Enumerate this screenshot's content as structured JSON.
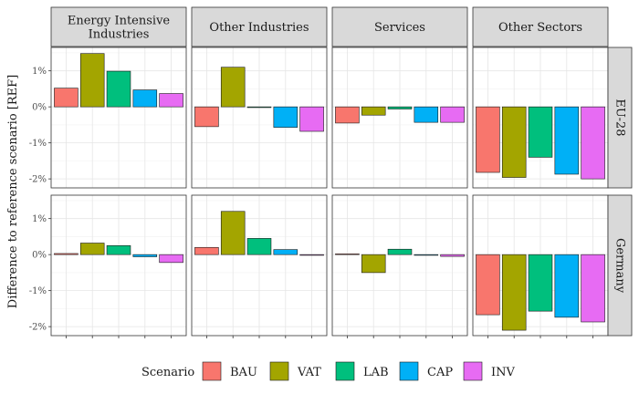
{
  "chart_data": {
    "type": "bar",
    "facet_columns": [
      [
        "Energy Intensive",
        "Industries"
      ],
      [
        "Other Industries"
      ],
      [
        "Services"
      ],
      [
        "Other Sectors"
      ]
    ],
    "facet_rows": [
      "EU-28",
      "Germany"
    ],
    "ylabel": "Difference to reference scenario [REF]",
    "ylim": [
      -2.25,
      1.65
    ],
    "yticks": [
      1,
      0,
      -1,
      -2
    ],
    "ytick_labels": [
      "1%",
      "0%",
      "-1%",
      "-2%"
    ],
    "grid": true,
    "legend": {
      "title": "Scenario",
      "position": "bottom"
    },
    "series": [
      {
        "name": "BAU",
        "color": "#F8766D"
      },
      {
        "name": "VAT",
        "color": "#A3A500"
      },
      {
        "name": "LAB",
        "color": "#00BF7D"
      },
      {
        "name": "CAP",
        "color": "#00B0F6"
      },
      {
        "name": "INV",
        "color": "#E76BF3"
      }
    ],
    "panels": [
      {
        "row": 0,
        "col": 0,
        "values": [
          0.52,
          1.48,
          0.99,
          0.47,
          0.37
        ]
      },
      {
        "row": 0,
        "col": 1,
        "values": [
          -0.55,
          1.1,
          -0.02,
          -0.57,
          -0.68
        ]
      },
      {
        "row": 0,
        "col": 2,
        "values": [
          -0.45,
          -0.23,
          -0.06,
          -0.43,
          -0.43
        ]
      },
      {
        "row": 0,
        "col": 3,
        "values": [
          -1.82,
          -1.96,
          -1.4,
          -1.87,
          -2.0
        ]
      },
      {
        "row": 1,
        "col": 0,
        "values": [
          0.03,
          0.32,
          0.25,
          -0.06,
          -0.22
        ]
      },
      {
        "row": 1,
        "col": 1,
        "values": [
          0.2,
          1.2,
          0.45,
          0.14,
          -0.02
        ]
      },
      {
        "row": 1,
        "col": 2,
        "values": [
          0.02,
          -0.5,
          0.15,
          -0.02,
          -0.05
        ]
      },
      {
        "row": 1,
        "col": 3,
        "values": [
          -1.67,
          -2.1,
          -1.57,
          -1.74,
          -1.87
        ]
      }
    ]
  }
}
